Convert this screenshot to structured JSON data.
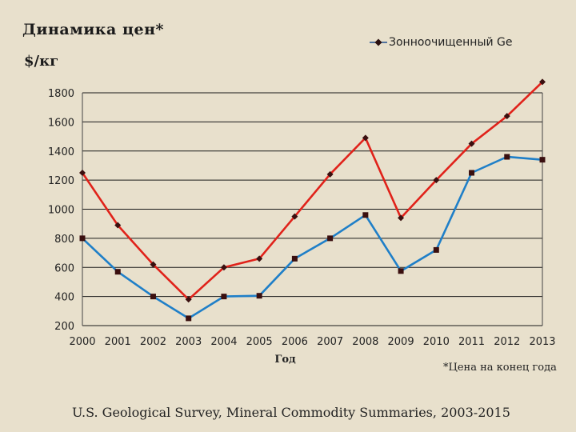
{
  "header": {
    "title": "Динамика цен*",
    "unit": "$/кг"
  },
  "legend": {
    "label": "Зонноочищенный Ge"
  },
  "footnote": "*Цена на конец года",
  "source": "U.S. Geological Survey, Mineral Commodity Summaries, 2003-2015",
  "colors": {
    "series_red": "#e0221a",
    "series_blue": "#1f7fc8",
    "marker": "#3a0f0f",
    "grid": "#1a1a1a"
  },
  "chart_data": {
    "type": "line",
    "title": "Динамика цен*",
    "xlabel": "Год",
    "ylabel": "$/кг",
    "categories": [
      "2000",
      "2001",
      "2002",
      "2003",
      "2004",
      "2005",
      "2006",
      "2007",
      "2008",
      "2009",
      "2010",
      "2011",
      "2012",
      "2013"
    ],
    "ylim": [
      200,
      1800
    ],
    "yticks": [
      200,
      400,
      600,
      800,
      1000,
      1200,
      1400,
      1600,
      1800
    ],
    "grid": true,
    "legend_position": "top-right",
    "series": [
      {
        "name": "Зонноочищенный Ge",
        "color": "#e0221a",
        "marker": "diamond",
        "values": [
          1250,
          890,
          620,
          380,
          600,
          660,
          950,
          1240,
          1490,
          940,
          1200,
          1450,
          1640,
          1875
        ]
      },
      {
        "color": "#1f7fc8",
        "marker": "square",
        "values": [
          800,
          570,
          400,
          250,
          400,
          405,
          660,
          800,
          960,
          575,
          720,
          1250,
          1360,
          1340
        ]
      }
    ]
  }
}
